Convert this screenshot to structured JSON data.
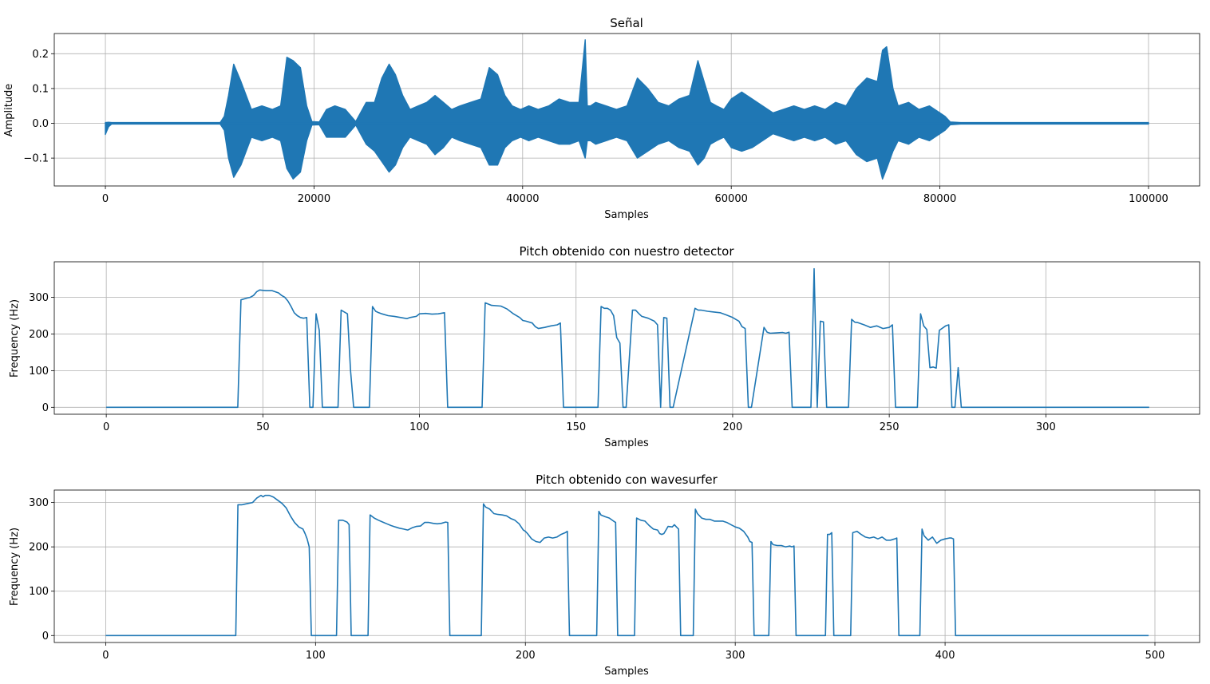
{
  "chart_data": [
    {
      "type": "line",
      "title": "Señal",
      "xlabel": "Samples",
      "ylabel": "Amplitude",
      "xlim": [
        -4900,
        104900
      ],
      "ylim": [
        -0.18,
        0.258
      ],
      "xticks": [
        0,
        20000,
        40000,
        60000,
        80000,
        100000
      ],
      "xtick_labels": [
        "0",
        "20000",
        "40000",
        "60000",
        "80000",
        "100000"
      ],
      "yticks": [
        -0.1,
        0.0,
        0.1,
        0.2
      ],
      "ytick_labels": [
        "−0.1",
        "0.0",
        "0.1",
        "0.2"
      ],
      "grid": true,
      "color": "#1f77b4",
      "envelope": {
        "x": [
          0,
          300,
          600,
          11000,
          11400,
          11800,
          12300,
          13000,
          14000,
          15000,
          16000,
          16800,
          17400,
          18000,
          18700,
          19300,
          19800,
          20500,
          21200,
          22000,
          23000,
          24000,
          25000,
          25800,
          26500,
          27200,
          27800,
          28500,
          29200,
          30000,
          30800,
          31600,
          32400,
          33200,
          34000,
          35000,
          36000,
          36800,
          37600,
          38300,
          39000,
          39800,
          40600,
          41500,
          42500,
          43500,
          44500,
          45400,
          46000,
          46200,
          46500,
          47000,
          48000,
          49000,
          50000,
          51000,
          52000,
          53000,
          54000,
          55000,
          56000,
          56800,
          57400,
          58000,
          58600,
          59300,
          60000,
          61000,
          62000,
          63000,
          64000,
          65000,
          66000,
          67000,
          68000,
          69000,
          70000,
          71000,
          72000,
          73000,
          74000,
          74500,
          74900,
          75500,
          76000,
          77000,
          78000,
          79000,
          80000,
          80500,
          81000,
          82000,
          100000
        ],
        "upper": [
          0.002,
          0.003,
          0.002,
          0.002,
          0.02,
          0.08,
          0.17,
          0.12,
          0.04,
          0.05,
          0.04,
          0.05,
          0.19,
          0.18,
          0.16,
          0.05,
          0.005,
          0.004,
          0.04,
          0.05,
          0.04,
          0.005,
          0.06,
          0.06,
          0.13,
          0.17,
          0.14,
          0.08,
          0.04,
          0.05,
          0.06,
          0.08,
          0.06,
          0.04,
          0.05,
          0.06,
          0.07,
          0.16,
          0.14,
          0.08,
          0.05,
          0.04,
          0.05,
          0.04,
          0.05,
          0.07,
          0.06,
          0.06,
          0.24,
          0.05,
          0.05,
          0.06,
          0.05,
          0.04,
          0.05,
          0.13,
          0.1,
          0.06,
          0.05,
          0.07,
          0.08,
          0.18,
          0.12,
          0.06,
          0.05,
          0.04,
          0.07,
          0.09,
          0.07,
          0.05,
          0.03,
          0.04,
          0.05,
          0.04,
          0.05,
          0.04,
          0.06,
          0.05,
          0.1,
          0.13,
          0.12,
          0.21,
          0.22,
          0.1,
          0.05,
          0.06,
          0.04,
          0.05,
          0.03,
          0.02,
          0.004,
          0.002,
          0.002
        ],
        "lower": [
          -0.032,
          -0.01,
          -0.002,
          -0.002,
          -0.02,
          -0.1,
          -0.155,
          -0.12,
          -0.04,
          -0.05,
          -0.04,
          -0.05,
          -0.13,
          -0.16,
          -0.14,
          -0.05,
          -0.005,
          -0.004,
          -0.04,
          -0.04,
          -0.04,
          -0.005,
          -0.06,
          -0.08,
          -0.11,
          -0.14,
          -0.12,
          -0.07,
          -0.04,
          -0.05,
          -0.06,
          -0.09,
          -0.07,
          -0.04,
          -0.05,
          -0.06,
          -0.07,
          -0.12,
          -0.12,
          -0.07,
          -0.05,
          -0.04,
          -0.05,
          -0.04,
          -0.05,
          -0.06,
          -0.06,
          -0.05,
          -0.1,
          -0.05,
          -0.05,
          -0.06,
          -0.05,
          -0.04,
          -0.05,
          -0.1,
          -0.08,
          -0.06,
          -0.05,
          -0.07,
          -0.08,
          -0.12,
          -0.1,
          -0.06,
          -0.05,
          -0.04,
          -0.07,
          -0.08,
          -0.07,
          -0.05,
          -0.03,
          -0.04,
          -0.05,
          -0.04,
          -0.05,
          -0.04,
          -0.06,
          -0.05,
          -0.09,
          -0.11,
          -0.1,
          -0.16,
          -0.13,
          -0.08,
          -0.05,
          -0.06,
          -0.04,
          -0.05,
          -0.03,
          -0.02,
          -0.004,
          -0.002,
          -0.002
        ]
      }
    },
    {
      "type": "line",
      "title": "Pitch obtenido con nuestro detector",
      "xlabel": "Samples",
      "ylabel": "Frequency (Hz)",
      "xlim": [
        -16.6,
        349.1
      ],
      "ylim": [
        -18.9,
        396.9
      ],
      "xticks": [
        0,
        50,
        100,
        150,
        200,
        250,
        300
      ],
      "xtick_labels": [
        "0",
        "50",
        "100",
        "150",
        "200",
        "250",
        "300"
      ],
      "yticks": [
        0,
        100,
        200,
        300
      ],
      "ytick_labels": [
        "0",
        "100",
        "200",
        "300"
      ],
      "grid": true,
      "color": "#1f77b4",
      "series": [
        {
          "name": "pitch",
          "x": [
            0,
            42,
            43,
            45,
            46,
            47,
            48,
            49,
            50,
            51,
            53,
            55,
            56,
            57,
            58,
            59,
            60,
            61,
            62,
            63,
            64,
            65,
            66,
            67,
            68,
            69,
            74,
            75,
            76,
            77,
            78,
            79,
            84,
            85,
            86,
            87,
            88,
            90,
            92,
            94,
            96,
            97,
            99,
            100,
            102,
            104,
            106,
            108,
            109,
            120,
            121,
            123,
            126,
            128,
            130,
            132,
            133,
            134,
            136,
            137,
            138,
            140,
            142,
            144,
            145,
            146,
            157,
            158,
            159,
            160,
            161,
            162,
            163,
            164,
            165,
            166,
            168,
            169,
            170,
            171,
            173,
            175,
            176,
            177,
            178,
            179,
            180,
            181,
            188,
            189,
            190,
            192,
            194,
            196,
            198,
            200,
            202,
            203,
            204,
            205,
            206,
            210,
            211,
            212,
            214,
            216,
            217,
            218,
            219,
            225,
            226,
            227,
            228,
            229,
            230,
            231,
            237,
            238,
            239,
            240,
            241,
            242,
            244,
            246,
            248,
            250,
            251,
            252,
            259,
            260,
            261,
            262,
            263,
            264,
            265,
            266,
            268,
            269,
            270,
            271,
            272,
            273,
            274,
            333
          ],
          "y": [
            0,
            0,
            293,
            298,
            300,
            305,
            315,
            320,
            319,
            318,
            318,
            312,
            305,
            300,
            290,
            275,
            258,
            250,
            245,
            243,
            245,
            0,
            0,
            255,
            210,
            0,
            0,
            265,
            260,
            255,
            100,
            0,
            0,
            275,
            262,
            258,
            255,
            250,
            248,
            245,
            242,
            245,
            248,
            255,
            256,
            254,
            255,
            258,
            0,
            0,
            285,
            278,
            276,
            268,
            255,
            245,
            237,
            235,
            230,
            220,
            215,
            218,
            222,
            225,
            230,
            0,
            0,
            275,
            270,
            270,
            265,
            250,
            190,
            175,
            0,
            0,
            265,
            265,
            256,
            248,
            243,
            235,
            225,
            0,
            245,
            243,
            0,
            0,
            270,
            265,
            265,
            262,
            260,
            258,
            252,
            245,
            235,
            220,
            215,
            0,
            0,
            218,
            205,
            202,
            203,
            204,
            202,
            205,
            0,
            0,
            378,
            0,
            235,
            233,
            0,
            0,
            0,
            240,
            232,
            231,
            228,
            225,
            218,
            222,
            215,
            218,
            225,
            0,
            0,
            255,
            222,
            212,
            108,
            110,
            107,
            210,
            222,
            225,
            0,
            0,
            108,
            0,
            0,
            0
          ]
        }
      ]
    },
    {
      "type": "line",
      "title": "Pitch obtenido con wavesurfer",
      "xlabel": "Samples",
      "ylabel": "Frequency (Hz)",
      "xlim": [
        -24.5,
        521.3
      ],
      "ylim": [
        -15.7,
        328.1
      ],
      "xticks": [
        0,
        100,
        200,
        300,
        400,
        500
      ],
      "xtick_labels": [
        "0",
        "100",
        "200",
        "300",
        "400",
        "500"
      ],
      "yticks": [
        0,
        100,
        200,
        300
      ],
      "ytick_labels": [
        "0",
        "100",
        "200",
        "300"
      ],
      "grid": true,
      "color": "#1f77b4",
      "series": [
        {
          "name": "wavesurfer",
          "x": [
            0,
            62,
            63,
            65,
            66,
            68,
            70,
            72,
            74,
            75,
            76,
            78,
            80,
            82,
            84,
            86,
            88,
            90,
            92,
            94,
            95,
            96,
            97,
            98,
            110,
            111,
            113,
            115,
            116,
            117,
            125,
            126,
            128,
            130,
            132,
            134,
            136,
            138,
            140,
            142,
            144,
            146,
            148,
            150,
            152,
            154,
            156,
            158,
            160,
            162,
            163,
            164,
            179,
            180,
            181,
            183,
            185,
            187,
            189,
            191,
            193,
            195,
            197,
            199,
            200,
            201,
            203,
            205,
            207,
            209,
            211,
            213,
            215,
            217,
            219,
            220,
            221,
            234,
            235,
            236,
            238,
            240,
            242,
            243,
            244,
            252,
            253,
            255,
            257,
            259,
            261,
            263,
            264,
            265,
            266,
            268,
            270,
            271,
            272,
            273,
            274,
            280,
            281,
            282,
            284,
            286,
            288,
            290,
            292,
            294,
            296,
            298,
            300,
            302,
            304,
            306,
            307,
            308,
            309,
            310,
            316,
            317,
            318,
            320,
            322,
            324,
            326,
            327,
            328,
            329,
            343,
            344,
            345,
            346,
            347,
            355,
            356,
            358,
            360,
            362,
            364,
            366,
            368,
            370,
            372,
            374,
            376,
            377,
            378,
            388,
            389,
            390,
            392,
            394,
            396,
            398,
            400,
            402,
            403,
            404,
            405,
            497
          ],
          "y": [
            0,
            0,
            295,
            295,
            296,
            298,
            300,
            310,
            316,
            313,
            316,
            316,
            312,
            305,
            298,
            288,
            270,
            255,
            245,
            240,
            230,
            218,
            200,
            0,
            0,
            260,
            260,
            256,
            250,
            0,
            0,
            272,
            265,
            260,
            256,
            252,
            248,
            245,
            242,
            240,
            238,
            243,
            246,
            247,
            255,
            255,
            253,
            252,
            253,
            256,
            255,
            0,
            0,
            297,
            290,
            285,
            275,
            273,
            272,
            270,
            264,
            260,
            252,
            238,
            235,
            230,
            218,
            212,
            210,
            220,
            222,
            220,
            222,
            228,
            232,
            235,
            0,
            0,
            280,
            272,
            268,
            265,
            258,
            255,
            0,
            0,
            265,
            260,
            258,
            248,
            240,
            238,
            230,
            228,
            230,
            246,
            245,
            250,
            245,
            240,
            0,
            0,
            285,
            275,
            265,
            262,
            262,
            258,
            258,
            258,
            255,
            250,
            245,
            242,
            235,
            222,
            212,
            210,
            0,
            0,
            0,
            212,
            205,
            203,
            203,
            200,
            202,
            200,
            202,
            0,
            0,
            228,
            228,
            232,
            0,
            0,
            232,
            235,
            228,
            222,
            220,
            222,
            218,
            222,
            215,
            215,
            218,
            220,
            0,
            0,
            240,
            225,
            215,
            222,
            208,
            215,
            218,
            220,
            220,
            218,
            0,
            0
          ]
        }
      ]
    }
  ]
}
